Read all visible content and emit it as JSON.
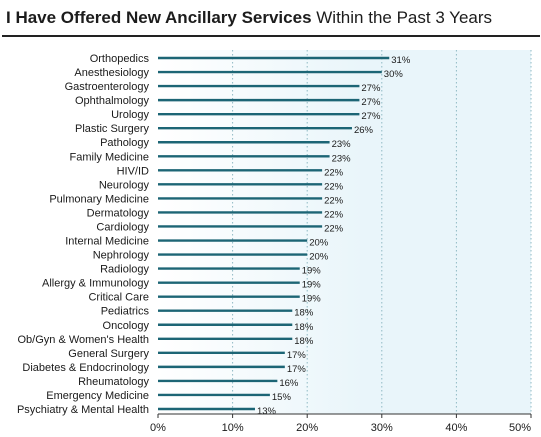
{
  "title": {
    "bold_part": "I Have Offered New Ancillary Services",
    "normal_part": "Within the Past 3 Years"
  },
  "colors": {
    "bar": "#1c6575",
    "plot_bg_light": "#ffffff",
    "plot_bg_tint": "#e9f5fa",
    "grid": "#8fb9c4",
    "axis": "#333333"
  },
  "chart_data": {
    "type": "bar",
    "orientation": "horizontal",
    "categories": [
      "Orthopedics",
      "Anesthesiology",
      "Gastroenterology",
      "Ophthalmology",
      "Urology",
      "Plastic Surgery",
      "Pathology",
      "Family Medicine",
      "HIV/ID",
      "Neurology",
      "Pulmonary Medicine",
      "Dermatology",
      "Cardiology",
      "Internal Medicine",
      "Nephrology",
      "Radiology",
      "Allergy & Immunology",
      "Critical Care",
      "Pediatrics",
      "Oncology",
      "Ob/Gyn & Women's Health",
      "General Surgery",
      "Diabetes & Endocrinology",
      "Rheumatology",
      "Emergency Medicine",
      "Psychiatry & Mental Health"
    ],
    "values": [
      31,
      30,
      27,
      27,
      27,
      26,
      23,
      23,
      22,
      22,
      22,
      22,
      22,
      20,
      20,
      19,
      19,
      19,
      18,
      18,
      18,
      17,
      17,
      16,
      15,
      13
    ],
    "value_labels": [
      "31%",
      "30%",
      "27%",
      "27%",
      "27%",
      "26%",
      "23%",
      "23%",
      "22%",
      "22%",
      "22%",
      "22%",
      "22%",
      "20%",
      "20%",
      "19%",
      "19%",
      "19%",
      "18%",
      "18%",
      "18%",
      "17%",
      "17%",
      "16%",
      "15%",
      "13%"
    ],
    "x_ticks": [
      0,
      10,
      20,
      30,
      40,
      50
    ],
    "x_tick_labels": [
      "0%",
      "10%",
      "20%",
      "30%",
      "40%",
      "50%"
    ],
    "xlim": [
      0,
      50
    ],
    "grid": true,
    "legend": "none"
  }
}
